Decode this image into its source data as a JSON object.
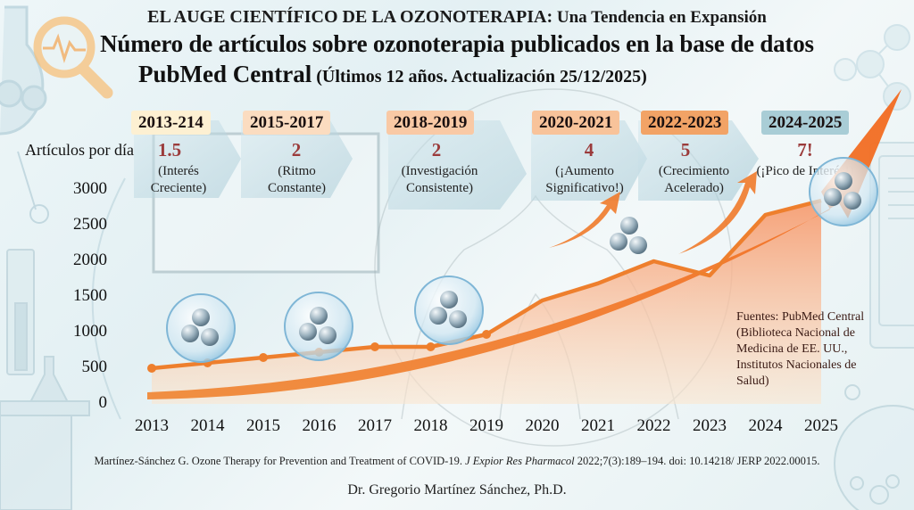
{
  "header": {
    "title_main": "EL AUGE CIENTÍFICO DE LA OZONOTERAPIA:",
    "title_sub": " Una Tendencia en Expansión",
    "subtitle_line1": "Número de artículos sobre ozonoterapia publicados en la base de datos",
    "subtitle_line2_bold": "PubMed Central",
    "subtitle_line2_small": " (Últimos 12 años. Actualización 25/12/2025)"
  },
  "periods": [
    {
      "label": "2013-214",
      "rate": "1.5",
      "desc1": "(Interés",
      "desc2": "Creciente)",
      "color": "#fdf0d2"
    },
    {
      "label": "2015-2017",
      "rate": "2",
      "desc1": "(Ritmo",
      "desc2": "Constante)",
      "color": "#fbdcc0"
    },
    {
      "label": "2018-2019",
      "rate": "2",
      "desc1": "(Investigación",
      "desc2": "Consistente)",
      "color": "#f9c9a5"
    },
    {
      "label": "2020-2021",
      "rate": "4",
      "desc1": "(¡Aumento",
      "desc2": "Significativo!)",
      "color": "#f8c39a"
    },
    {
      "label": "2022-2023",
      "rate": "5",
      "desc1": "(Crecimiento",
      "desc2": "Acelerado)",
      "color": "#f2a366"
    },
    {
      "label": "2024-2025",
      "rate": "7!",
      "desc1": "(¡Pico de Interés!)",
      "desc2": "",
      "color": "#a9cdd6"
    }
  ],
  "axis": {
    "ylabel": "Artículos por día"
  },
  "sources": {
    "text": "Fuentes: PubMed Central (Biblioteca Nacional de Medicina de EE. UU., Institutos Nacionales de Salud)"
  },
  "footer": {
    "citation_a": "Martínez-Sánchez G. Ozone Therapy for Prevention and Treatment of COVID-19. ",
    "citation_journal": "J Expior Res Pharmacol",
    "citation_b": " 2022;7(3):189–194. doi: 10.14218/ JERP 2022.00015.",
    "author": "Dr. Gregorio Martínez Sánchez, Ph.D."
  },
  "colors": {
    "line": "#ee7f2d",
    "area_top": "#f7a072",
    "area_bottom": "#fbe3c8",
    "rate_text": "#9b3b3b"
  },
  "chart_data": {
    "type": "area",
    "title": "Número de artículos sobre ozonoterapia publicados en la base de datos PubMed Central",
    "subtitle": "Últimos 12 años. Actualización 25/12/2025",
    "xlabel": "",
    "ylabel": "Artículos por día",
    "x": [
      "2013",
      "2014",
      "2015",
      "2016",
      "2017",
      "2018",
      "2019",
      "2020",
      "2021",
      "2022",
      "2023",
      "2024",
      "2025"
    ],
    "categories": [
      "2013",
      "2014",
      "2015",
      "2016",
      "2017",
      "2018",
      "2019",
      "2020",
      "2021",
      "2022",
      "2023",
      "2024",
      "2025"
    ],
    "values": [
      500,
      575,
      650,
      725,
      800,
      800,
      975,
      1450,
      1690,
      2000,
      1800,
      2650,
      2850
    ],
    "yticks": [
      0,
      500,
      1000,
      1500,
      2000,
      2500,
      3000
    ],
    "ylim": [
      0,
      3000
    ],
    "grid": false,
    "legend": "none",
    "annotations": [
      {
        "period": "2013-214",
        "articles_per_day": 1.5,
        "note": "(Interés Creciente)"
      },
      {
        "period": "2015-2017",
        "articles_per_day": 2,
        "note": "(Ritmo Constante)"
      },
      {
        "period": "2018-2019",
        "articles_per_day": 2,
        "note": "(Investigación Consistente)"
      },
      {
        "period": "2020-2021",
        "articles_per_day": 4,
        "note": "(¡Aumento Significativo!)"
      },
      {
        "period": "2022-2023",
        "articles_per_day": 5,
        "note": "(Crecimiento Acelerado)"
      },
      {
        "period": "2024-2025",
        "articles_per_day": "7!",
        "note": "(¡Pico de Interés!)"
      }
    ],
    "source_note": "Fuentes: PubMed Central (Biblioteca Nacional de Medicina de EE. UU., Institutos Nacionales de Salud)"
  }
}
